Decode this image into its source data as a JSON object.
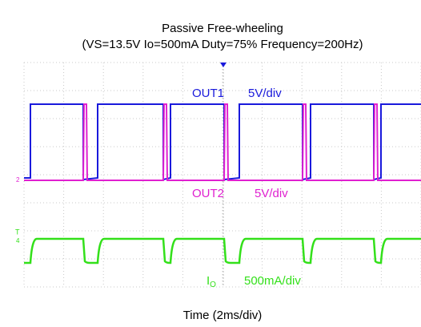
{
  "title": "Passive Free-wheeling",
  "subtitle": "(VS=13.5V Io=500mA Duty=75% Frequency=200Hz)",
  "channels": [
    {
      "name": "OUT1",
      "scale": "5V/div",
      "color": "#1a1adc"
    },
    {
      "name": "OUT2",
      "scale": "5V/div",
      "color": "#e020d0"
    },
    {
      "name": "I",
      "subscript": "O",
      "scale": "500mA/div",
      "color": "#33e01a"
    }
  ],
  "markers": [
    "2",
    "T",
    "4"
  ],
  "x_axis_label": "Time (2ms/div)"
}
